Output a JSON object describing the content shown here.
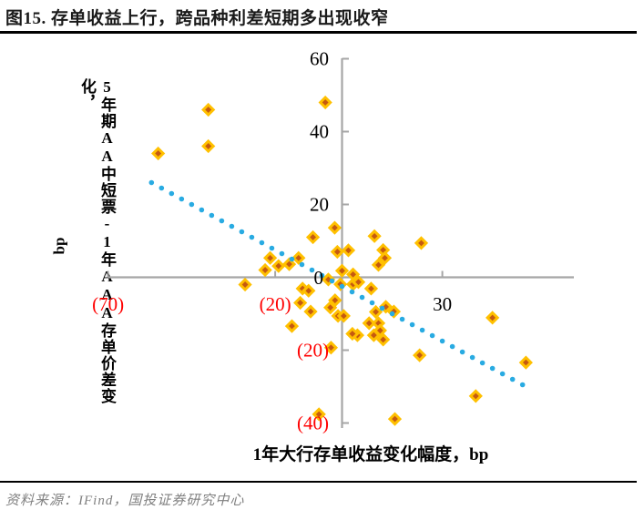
{
  "title": "图15. 存单收益上行，跨品种利差短期多出现收窄",
  "source": "资料来源：IFind，国投证券研究中心",
  "chart_data": {
    "type": "scatter",
    "xlabel": "1年大行存单收益变化幅度，bp",
    "ylabel": "5年期AA中短票-1年AAA存单价差变化，bp",
    "ylabel_main": "5年期AA中短票-1年AAA存单价差变化，",
    "ylabel_unit": "bp",
    "xlim": [
      -70,
      70
    ],
    "ylim": [
      -45,
      62
    ],
    "grid": false,
    "legend": "none",
    "axis_color": "#A6A6A6",
    "negative_label_color": "#FF0000",
    "positive_label_color": "#000000",
    "origin_label": "0",
    "x_ticks": [
      {
        "value": -70,
        "label": "(70)"
      },
      {
        "value": -20,
        "label": "(20)"
      },
      {
        "value": 30,
        "label": "30"
      }
    ],
    "y_ticks": [
      {
        "value": 60,
        "label": "60"
      },
      {
        "value": 40,
        "label": "40"
      },
      {
        "value": 20,
        "label": "20"
      },
      {
        "value": -20,
        "label": "(20)"
      },
      {
        "value": -40,
        "label": "(40)"
      }
    ],
    "marker": {
      "shape": "diamond",
      "fill": "#C55A11",
      "stroke": "#FFC000"
    },
    "trend": {
      "style": "dotted",
      "color": "#29ABE2",
      "x_start": -57,
      "x_end": 54,
      "slope": -0.5,
      "intercept": -2.5
    },
    "points": [
      [
        -55,
        34
      ],
      [
        -40,
        46
      ],
      [
        -40,
        36
      ],
      [
        -5,
        48
      ],
      [
        -29,
        -2
      ],
      [
        -23,
        2
      ],
      [
        -21.5,
        5.3
      ],
      [
        -19,
        3.1
      ],
      [
        -15.8,
        3.6
      ],
      [
        -13,
        5.3
      ],
      [
        -8.7,
        11
      ],
      [
        -2.2,
        13.6
      ],
      [
        -1.4,
        7
      ],
      [
        1.9,
        7.4
      ],
      [
        0,
        1.8
      ],
      [
        3.3,
        0.8
      ],
      [
        -4.1,
        -0.6
      ],
      [
        -0.5,
        -1.9
      ],
      [
        3.3,
        -1.9
      ],
      [
        -11.8,
        -3.1
      ],
      [
        -10,
        -3.7
      ],
      [
        -12.5,
        -7
      ],
      [
        -9.4,
        -9.4
      ],
      [
        -3.5,
        -8.3
      ],
      [
        -2.1,
        -6.3
      ],
      [
        -1.2,
        -10.6
      ],
      [
        0.5,
        -10.6
      ],
      [
        -15,
        -13.4
      ],
      [
        -3.3,
        -19.3
      ],
      [
        -6.9,
        -37.6
      ],
      [
        9.7,
        11.3
      ],
      [
        12.3,
        7.5
      ],
      [
        12.8,
        5.3
      ],
      [
        10.9,
        3.4
      ],
      [
        4.9,
        -1.3
      ],
      [
        8.7,
        -3.1
      ],
      [
        23.7,
        9.4
      ],
      [
        10.1,
        -9.5
      ],
      [
        13.1,
        -8.1
      ],
      [
        15.5,
        -9.4
      ],
      [
        8.1,
        -12.6
      ],
      [
        10.9,
        -12.6
      ],
      [
        9.5,
        -15.9
      ],
      [
        4.6,
        -15.9
      ],
      [
        3.1,
        -15.5
      ],
      [
        11.4,
        -14.6
      ],
      [
        12.3,
        -17.1
      ],
      [
        23.2,
        -21.4
      ],
      [
        45,
        -11.1
      ],
      [
        40,
        -32.6
      ],
      [
        15.8,
        -38.9
      ],
      [
        55,
        -23.4
      ]
    ]
  }
}
